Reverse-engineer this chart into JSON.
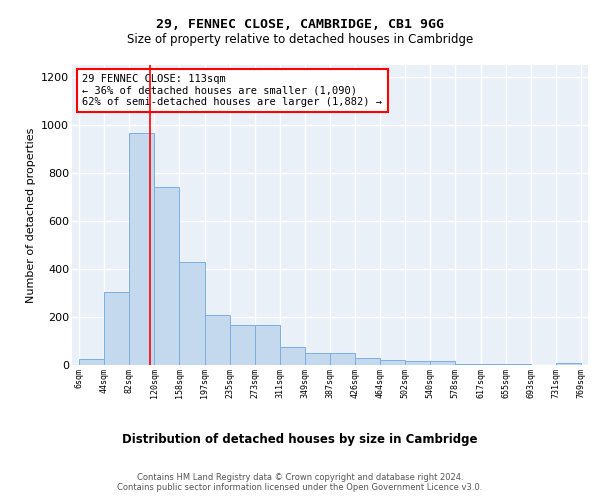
{
  "title1": "29, FENNEC CLOSE, CAMBRIDGE, CB1 9GG",
  "title2": "Size of property relative to detached houses in Cambridge",
  "xlabel": "Distribution of detached houses by size in Cambridge",
  "ylabel": "Number of detached properties",
  "bar_color": "#c5d9ee",
  "bar_edge_color": "#7aafe0",
  "bg_color": "#eaf0f8",
  "annotation_line1": "29 FENNEC CLOSE: 113sqm",
  "annotation_line2": "← 36% of detached houses are smaller (1,090)",
  "annotation_line3": "62% of semi-detached houses are larger (1,882) →",
  "vline_x": 113,
  "footer1": "Contains HM Land Registry data © Crown copyright and database right 2024.",
  "footer2": "Contains public sector information licensed under the Open Government Licence v3.0.",
  "bin_edges": [
    6,
    44,
    82,
    120,
    158,
    197,
    235,
    273,
    311,
    349,
    387,
    426,
    464,
    502,
    540,
    578,
    617,
    655,
    693,
    731,
    769
  ],
  "bar_heights": [
    25,
    305,
    965,
    740,
    430,
    210,
    165,
    165,
    75,
    50,
    50,
    30,
    20,
    15,
    15,
    5,
    5,
    5,
    0,
    10
  ],
  "ylim": [
    0,
    1250
  ],
  "yticks": [
    0,
    200,
    400,
    600,
    800,
    1000,
    1200
  ]
}
